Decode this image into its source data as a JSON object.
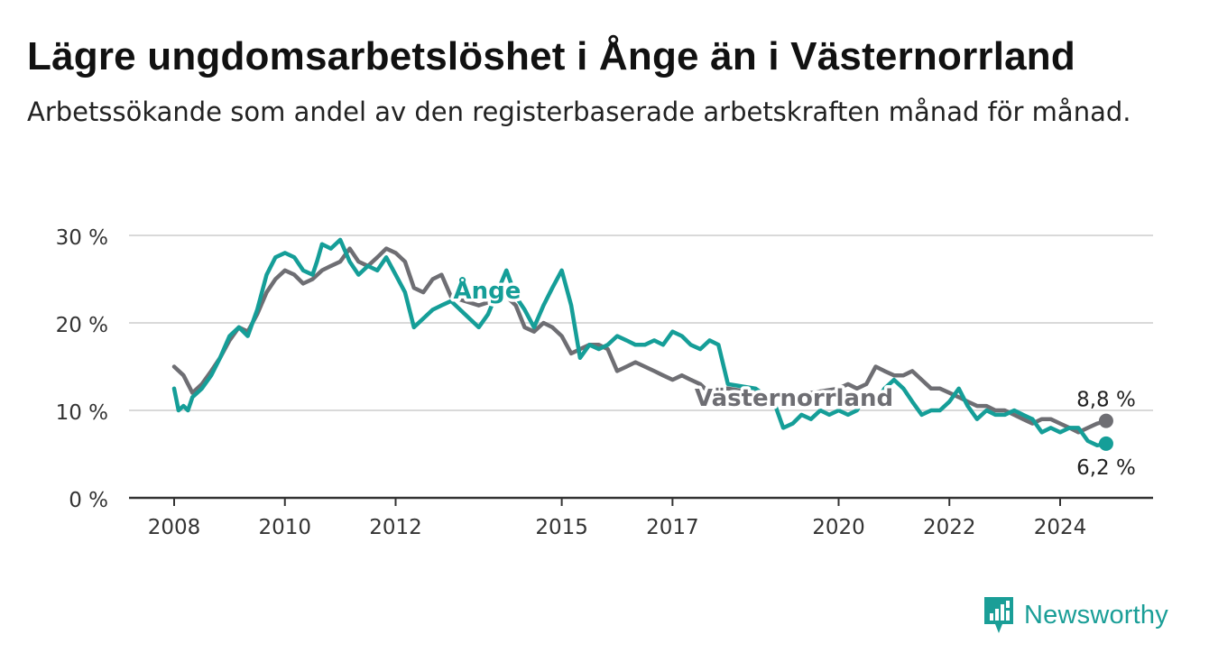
{
  "title": "Lägre ungdomsarbetslöshet i Ånge än i Västernorrland",
  "subtitle": "Arbetssökande som andel av den registerbaserade arbetskraften månad för månad.",
  "logo": {
    "text": "Newsworthy",
    "icon": "newsworthy-chart-icon"
  },
  "colors": {
    "ange": "#159e98",
    "vasternorrland": "#6e6e73",
    "grid": "#d9d9d9",
    "axis": "#333333"
  },
  "chart_data": {
    "type": "line",
    "ylim": [
      0,
      30
    ],
    "y_ticks": [
      {
        "value": 0,
        "label": "0 %"
      },
      {
        "value": 10,
        "label": "10 %"
      },
      {
        "value": 20,
        "label": "20 %"
      },
      {
        "value": 30,
        "label": "30 %"
      }
    ],
    "x_ticks": [
      {
        "value": 2008,
        "label": "2008"
      },
      {
        "value": 2010,
        "label": "2010"
      },
      {
        "value": 2012,
        "label": "2012"
      },
      {
        "value": 2015,
        "label": "2015"
      },
      {
        "value": 2017,
        "label": "2017"
      },
      {
        "value": 2020,
        "label": "2020"
      },
      {
        "value": 2022,
        "label": "2022"
      },
      {
        "value": 2024,
        "label": "2024"
      }
    ],
    "grid": true,
    "series": [
      {
        "name": "Västernorrland",
        "key": "vasternorrland",
        "end_label": "8,8 %",
        "x": [
          2008.0,
          2008.17,
          2008.33,
          2008.5,
          2008.67,
          2008.83,
          2009.0,
          2009.17,
          2009.33,
          2009.5,
          2009.67,
          2009.83,
          2010.0,
          2010.17,
          2010.33,
          2010.5,
          2010.67,
          2010.83,
          2011.0,
          2011.17,
          2011.33,
          2011.5,
          2011.67,
          2011.83,
          2012.0,
          2012.17,
          2012.33,
          2012.5,
          2012.67,
          2012.83,
          2013.0,
          2013.5,
          2014.0,
          2014.17,
          2014.33,
          2014.5,
          2014.67,
          2014.83,
          2015.0,
          2015.17,
          2015.33,
          2015.5,
          2015.67,
          2015.83,
          2016.0,
          2016.17,
          2016.33,
          2016.5,
          2016.67,
          2016.83,
          2017.0,
          2017.17,
          2017.33,
          2017.5,
          2017.67,
          2017.83,
          2018.0,
          2018.5,
          2019.0,
          2019.5,
          2020.0,
          2020.17,
          2020.33,
          2020.5,
          2020.67,
          2020.83,
          2021.0,
          2021.17,
          2021.33,
          2021.5,
          2021.67,
          2021.83,
          2022.0,
          2022.17,
          2022.33,
          2022.5,
          2022.67,
          2022.83,
          2023.0,
          2023.17,
          2023.33,
          2023.5,
          2023.67,
          2023.83,
          2024.0,
          2024.17,
          2024.33,
          2024.5,
          2024.67,
          2024.83
        ],
        "y": [
          15.0,
          14.0,
          12.0,
          13.0,
          14.5,
          16.0,
          18.0,
          19.5,
          19.0,
          21.0,
          23.5,
          25.0,
          26.0,
          25.5,
          24.5,
          25.0,
          26.0,
          26.5,
          27.0,
          28.5,
          27.0,
          26.5,
          27.5,
          28.5,
          28.0,
          27.0,
          24.0,
          23.5,
          25.0,
          25.5,
          23.0,
          22.0,
          23.0,
          22.0,
          19.5,
          19.0,
          20.0,
          19.5,
          18.5,
          16.5,
          17.0,
          17.5,
          17.5,
          17.0,
          14.5,
          15.0,
          15.5,
          15.0,
          14.5,
          14.0,
          13.5,
          14.0,
          13.5,
          13.0,
          12.0,
          12.5,
          12.5,
          12.0,
          11.5,
          12.0,
          12.5,
          13.0,
          12.5,
          13.0,
          15.0,
          14.5,
          14.0,
          14.0,
          14.5,
          13.5,
          12.5,
          12.5,
          12.0,
          11.5,
          11.0,
          10.5,
          10.5,
          10.0,
          10.0,
          9.5,
          9.0,
          8.5,
          9.0,
          9.0,
          8.5,
          8.0,
          7.5,
          8.0,
          8.5,
          8.8
        ]
      },
      {
        "name": "Ånge",
        "key": "ange",
        "end_label": "6,2 %",
        "x": [
          2008.0,
          2008.08,
          2008.17,
          2008.25,
          2008.33,
          2008.5,
          2008.67,
          2008.83,
          2009.0,
          2009.17,
          2009.33,
          2009.5,
          2009.67,
          2009.83,
          2010.0,
          2010.17,
          2010.33,
          2010.5,
          2010.58,
          2010.67,
          2010.83,
          2011.0,
          2011.17,
          2011.33,
          2011.5,
          2011.67,
          2011.83,
          2012.0,
          2012.17,
          2012.33,
          2012.5,
          2012.67,
          2012.83,
          2013.0,
          2013.5,
          2013.67,
          2014.0,
          2014.17,
          2014.33,
          2014.5,
          2014.67,
          2014.83,
          2015.0,
          2015.17,
          2015.33,
          2015.5,
          2015.67,
          2015.83,
          2016.0,
          2016.17,
          2016.33,
          2016.5,
          2016.67,
          2016.83,
          2017.0,
          2017.17,
          2017.33,
          2017.5,
          2017.67,
          2017.83,
          2018.0,
          2018.5,
          2018.83,
          2019.0,
          2019.17,
          2019.33,
          2019.5,
          2019.67,
          2019.83,
          2020.0,
          2020.17,
          2020.33,
          2020.5,
          2020.67,
          2020.83,
          2021.0,
          2021.17,
          2021.33,
          2021.5,
          2021.67,
          2021.83,
          2022.0,
          2022.17,
          2022.33,
          2022.5,
          2022.67,
          2022.83,
          2023.0,
          2023.17,
          2023.33,
          2023.5,
          2023.67,
          2023.83,
          2024.0,
          2024.17,
          2024.33,
          2024.5,
          2024.67,
          2024.83
        ],
        "y": [
          12.5,
          10.0,
          10.5,
          10.0,
          11.5,
          12.5,
          14.0,
          16.0,
          18.5,
          19.5,
          18.5,
          21.5,
          25.5,
          27.5,
          28.0,
          27.5,
          26.0,
          25.5,
          27.0,
          29.0,
          28.5,
          29.5,
          27.0,
          25.5,
          26.5,
          26.0,
          27.5,
          25.5,
          23.5,
          19.5,
          20.5,
          21.5,
          22.0,
          22.5,
          19.5,
          21.0,
          26.0,
          23.0,
          21.5,
          19.5,
          22.0,
          24.0,
          26.0,
          22.0,
          16.0,
          17.5,
          17.0,
          17.5,
          18.5,
          18.0,
          17.5,
          17.5,
          18.0,
          17.5,
          19.0,
          18.5,
          17.5,
          17.0,
          18.0,
          17.5,
          13.0,
          12.5,
          11.0,
          8.0,
          8.5,
          9.5,
          9.0,
          10.0,
          9.5,
          10.0,
          9.5,
          10.0,
          12.0,
          11.0,
          12.5,
          13.5,
          12.5,
          11.0,
          9.5,
          10.0,
          10.0,
          11.0,
          12.5,
          10.5,
          9.0,
          10.0,
          9.5,
          9.5,
          10.0,
          9.5,
          9.0,
          7.5,
          8.0,
          7.5,
          8.0,
          8.0,
          6.5,
          6.0,
          6.2
        ]
      }
    ],
    "annotations": [
      {
        "text": "Ånge",
        "series": "ange"
      },
      {
        "text": "Västernorrland",
        "series": "vasternorrland"
      }
    ]
  }
}
